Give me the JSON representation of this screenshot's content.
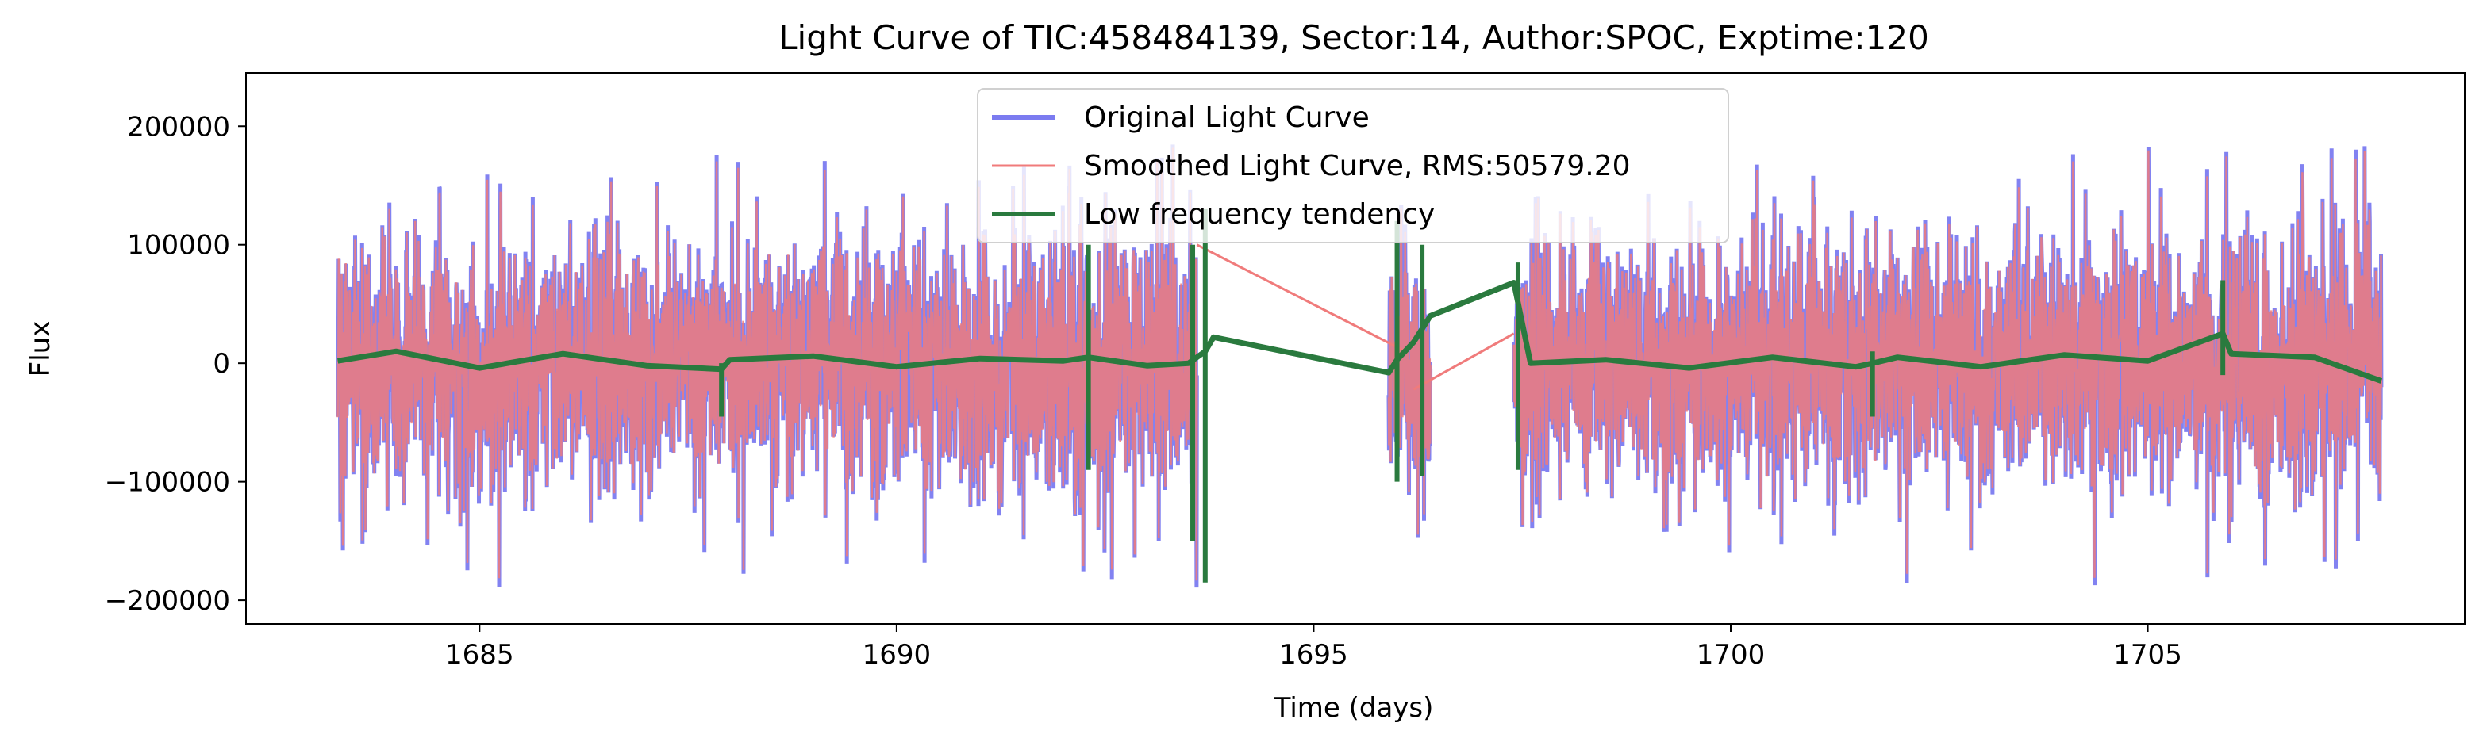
{
  "chart_data": {
    "type": "line",
    "title": "Light Curve of TIC:458484139, Sector:14, Author:SPOC, Exptime:120",
    "xlabel": "Time (days)",
    "ylabel": "Flux",
    "xlim": [
      1682.2,
      1708.8
    ],
    "ylim": [
      -220000,
      245000
    ],
    "x_ticks": [
      1685,
      1690,
      1695,
      1700,
      1705
    ],
    "x_tick_labels": [
      "1685",
      "1690",
      "1695",
      "1700",
      "1705"
    ],
    "y_ticks": [
      -200000,
      -100000,
      0,
      100000,
      200000
    ],
    "y_tick_labels": [
      "−200000",
      "−100000",
      "0",
      "100000",
      "200000"
    ],
    "grid": false,
    "legend_position": "top-center",
    "series": [
      {
        "name": "Original Light Curve",
        "color": "#7b7bf0",
        "description_segments": [
          [
            1683.3,
            1693.6
          ],
          [
            1695.9,
            1696.4
          ],
          [
            1697.4,
            1707.8
          ]
        ],
        "typical_range": [
          -100000,
          100000
        ],
        "peak_max": 222000,
        "peak_min": -200000
      },
      {
        "name": "Smoothed Light Curve, RMS:50579.20",
        "color": "#f07b7b"
      },
      {
        "name": "Low frequency tendency",
        "color": "#2a7a3e",
        "x": [
          1683.3,
          1684.0,
          1685.0,
          1686.0,
          1687.0,
          1687.9,
          1688.0,
          1689.0,
          1690.0,
          1691.0,
          1692.0,
          1692.3,
          1693.0,
          1693.5,
          1693.7,
          1693.8,
          1695.9,
          1696.0,
          1696.2,
          1696.4,
          1697.4,
          1697.6,
          1698.5,
          1699.5,
          1700.5,
          1701.5,
          1701.7,
          1702.0,
          1703.0,
          1704.0,
          1705.0,
          1705.9,
          1706.0,
          1707.0,
          1707.8
        ],
        "y": [
          2000,
          10000,
          -4000,
          8000,
          -2000,
          -5000,
          3000,
          6000,
          -3000,
          4000,
          2000,
          5000,
          -2000,
          0,
          10000,
          22000,
          -8000,
          3000,
          18000,
          40000,
          68000,
          0,
          3000,
          -4000,
          5000,
          -3000,
          0,
          5000,
          -3000,
          7000,
          2000,
          25000,
          8000,
          5000,
          -15000
        ]
      }
    ],
    "smoothed_gap_links": [
      {
        "x": [
          1693.6,
          1696.1
        ],
        "y": [
          100000,
          10000
        ]
      },
      {
        "x": [
          1696.2,
          1697.4
        ],
        "y": [
          -22000,
          25000
        ]
      }
    ]
  }
}
